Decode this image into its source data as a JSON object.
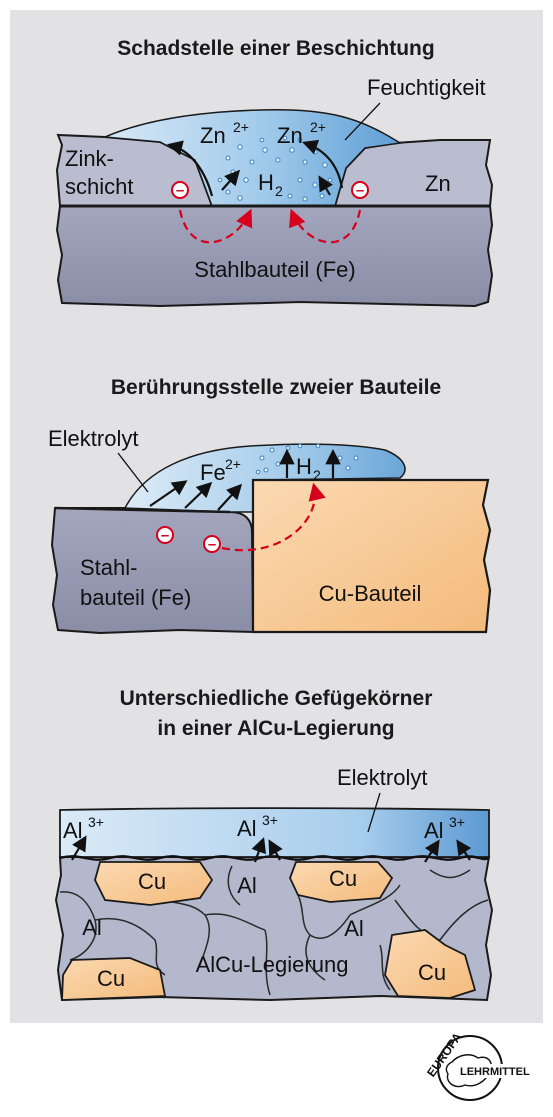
{
  "panel1": {
    "title": "Schadstelle einer Beschichtung",
    "label_feuchtigkeit": "Feuchtigkeit",
    "label_zink_line1": "Zink-",
    "label_zink_line2": "schicht",
    "label_zn": "Zn",
    "ion_zn_base": "Zn",
    "ion_zn_charge": "2+",
    "h2_base": "H",
    "h2_sub": "2",
    "label_stahl": "Stahlbauteil (Fe)"
  },
  "panel2": {
    "title": "Berührungsstelle zweier Bauteile",
    "label_elektrolyt": "Elektrolyt",
    "ion_fe_base": "Fe",
    "ion_fe_charge": "2+",
    "h2_base": "H",
    "h2_sub": "2",
    "label_stahl_line1": "Stahl-",
    "label_stahl_line2": "bauteil (Fe)",
    "label_cu": "Cu-Bauteil"
  },
  "panel3": {
    "title_line1": "Unterschiedliche Gefügekörner",
    "title_line2": "in einer AlCu-Legierung",
    "label_elektrolyt": "Elektrolyt",
    "ion_al_base": "Al",
    "ion_al_charge": "3+",
    "label_al": "Al",
    "label_cu": "Cu",
    "label_legierung": "AlCu-Legierung"
  },
  "logo": {
    "line1": "EUROPA",
    "line2": "LEHRMITTEL"
  },
  "colors": {
    "panel_bg": "#e2e2e4",
    "steel": "#8f92ab",
    "zinc": "#babdcf",
    "copper": "#f6c48a",
    "electrolyte": "#9ec8ea",
    "arrow_red": "#d6001c"
  }
}
